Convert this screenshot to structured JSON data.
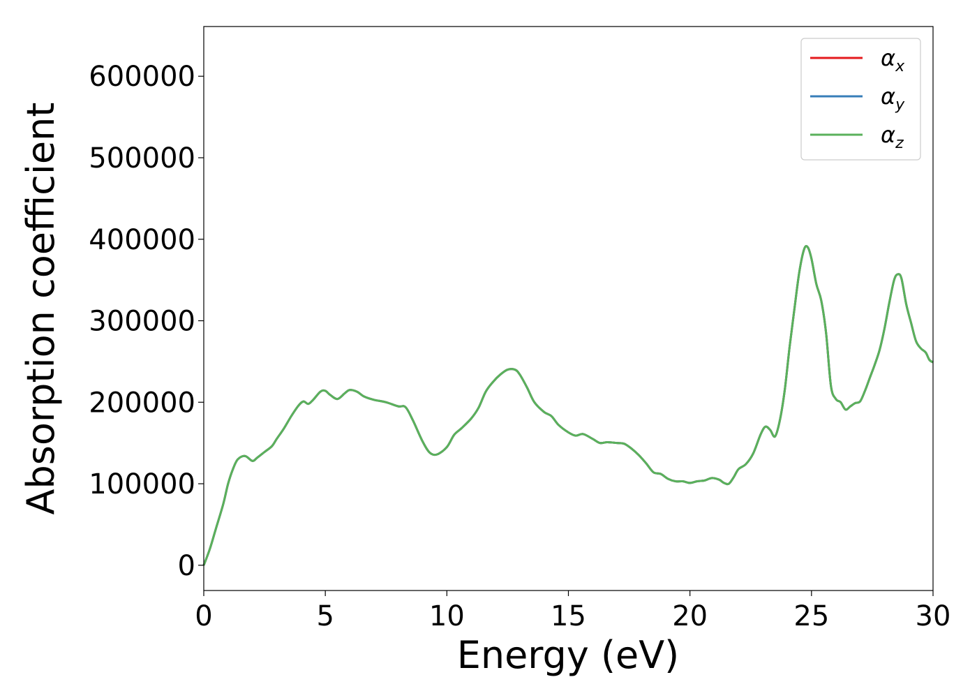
{
  "chart_data": {
    "type": "line",
    "xlabel": "Energy (eV)",
    "ylabel": "Absorption coefficient",
    "xlim": [
      0,
      30
    ],
    "ylim": [
      -31000,
      661000
    ],
    "x_ticks": [
      0,
      5,
      10,
      15,
      20,
      25,
      30
    ],
    "y_ticks": [
      0,
      100000,
      200000,
      300000,
      400000,
      500000,
      600000
    ],
    "grid": false,
    "legend_position": "top-right",
    "series": [
      {
        "name": "αx",
        "symbol": "α",
        "subscript": "x",
        "color": "#e41a1c",
        "x": [
          0,
          0.25,
          0.5,
          0.8,
          1.0,
          1.2,
          1.4,
          1.7,
          2.0,
          2.2,
          2.5,
          2.8,
          3.0,
          3.3,
          3.6,
          3.9,
          4.1,
          4.3,
          4.5,
          4.8,
          5.0,
          5.2,
          5.5,
          5.8,
          6.0,
          6.3,
          6.6,
          7.0,
          7.5,
          8.0,
          8.3,
          8.6,
          9.0,
          9.3,
          9.6,
          10.0,
          10.3,
          10.6,
          11.0,
          11.3,
          11.6,
          11.9,
          12.2,
          12.5,
          12.8,
          13.0,
          13.3,
          13.6,
          14.0,
          14.3,
          14.6,
          15.0,
          15.3,
          15.6,
          16.0,
          16.3,
          16.6,
          17.0,
          17.3,
          17.6,
          17.9,
          18.2,
          18.5,
          18.8,
          19.1,
          19.4,
          19.7,
          20.0,
          20.3,
          20.6,
          20.9,
          21.2,
          21.4,
          21.6,
          21.8,
          22.0,
          22.3,
          22.6,
          22.9,
          23.1,
          23.3,
          23.5,
          23.7,
          23.9,
          24.1,
          24.3,
          24.5,
          24.7,
          24.85,
          25.0,
          25.2,
          25.4,
          25.6,
          25.8,
          26.0,
          26.2,
          26.4,
          26.6,
          26.8,
          27.0,
          27.2,
          27.4,
          27.6,
          27.8,
          28.0,
          28.2,
          28.4,
          28.55,
          28.7,
          28.9,
          29.1,
          29.3,
          29.5,
          29.7,
          29.85,
          30.0
        ],
        "y": [
          0,
          20000,
          45000,
          75000,
          100000,
          118000,
          130000,
          134000,
          128000,
          132000,
          139000,
          146000,
          155000,
          168000,
          183000,
          196000,
          201000,
          198000,
          203000,
          213000,
          214000,
          209000,
          204000,
          211000,
          215000,
          213000,
          207000,
          203000,
          200000,
          195000,
          194000,
          178000,
          152000,
          138000,
          136000,
          145000,
          160000,
          168000,
          180000,
          193000,
          213000,
          225000,
          234000,
          240000,
          240000,
          234000,
          218000,
          200000,
          188000,
          183000,
          172000,
          163000,
          159000,
          161000,
          155000,
          150000,
          151000,
          150000,
          149000,
          143000,
          135000,
          125000,
          114000,
          112000,
          106000,
          103000,
          103000,
          101000,
          103000,
          104000,
          107000,
          105000,
          101000,
          100000,
          108000,
          118000,
          124000,
          137000,
          160000,
          170000,
          166000,
          158000,
          178000,
          215000,
          268000,
          315000,
          360000,
          388000,
          390000,
          376000,
          345000,
          325000,
          285000,
          220000,
          204000,
          200000,
          191000,
          195000,
          199000,
          201000,
          214000,
          230000,
          246000,
          264000,
          290000,
          322000,
          350000,
          357000,
          352000,
          320000,
          297000,
          275000,
          266000,
          261000,
          252000,
          249000
        ]
      },
      {
        "name": "αy",
        "symbol": "α",
        "subscript": "y",
        "color": "#377eb8",
        "same_as": "αx"
      },
      {
        "name": "αz",
        "symbol": "α",
        "subscript": "z",
        "color": "#5ab15b",
        "same_as": "αx"
      }
    ]
  }
}
